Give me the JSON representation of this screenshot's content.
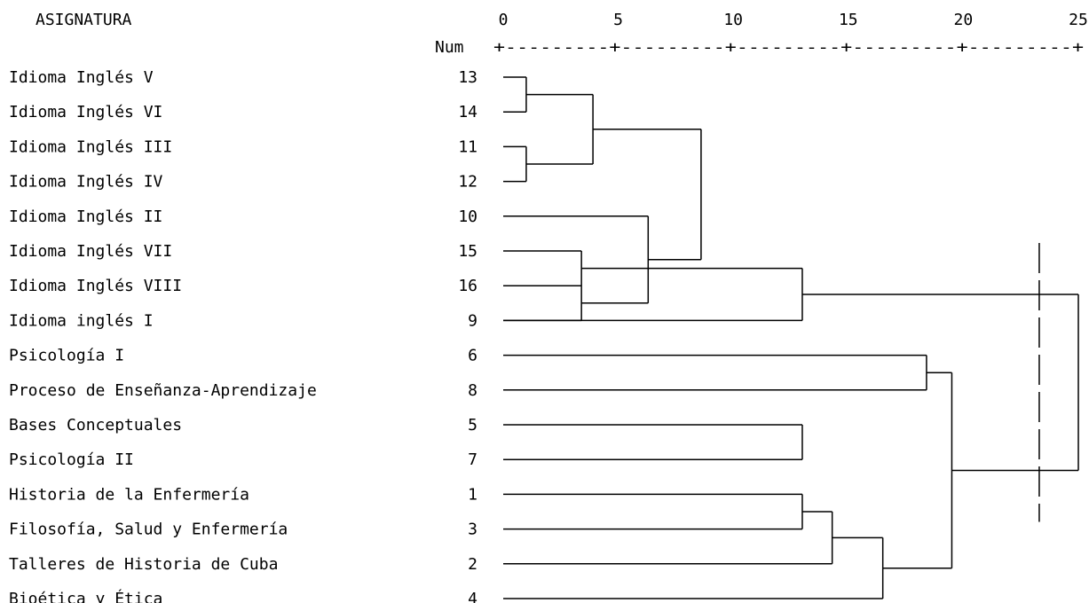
{
  "header": {
    "column_label": "ASIGNATURA",
    "num_label": "Num",
    "scale_ticks": [
      "0",
      "5",
      "10",
      "15",
      "20",
      "25"
    ],
    "scale_rule": "+---------+---------+---------+---------+---------+"
  },
  "items": [
    {
      "label": "Idioma Inglés V",
      "num": "13"
    },
    {
      "label": "Idioma Inglés VI",
      "num": "14"
    },
    {
      "label": "Idioma Inglés III",
      "num": "11"
    },
    {
      "label": "Idioma Inglés IV",
      "num": "12"
    },
    {
      "label": "Idioma Inglés II",
      "num": "10"
    },
    {
      "label": "Idioma Inglés VII",
      "num": "15"
    },
    {
      "label": "Idioma Inglés VIII",
      "num": "16"
    },
    {
      "label": "Idioma inglés I",
      "num": "9"
    },
    {
      "label": "Psicología I",
      "num": "6"
    },
    {
      "label": "Proceso de Enseñanza-Aprendizaje",
      "num": "8"
    },
    {
      "label": "Bases Conceptuales",
      "num": "5"
    },
    {
      "label": "Psicología II",
      "num": "7"
    },
    {
      "label": "Historia de la Enfermería",
      "num": "1"
    },
    {
      "label": "Filosofía, Salud y Enfermería",
      "num": "3"
    },
    {
      "label": "Talleres de Historia de Cuba",
      "num": "2"
    },
    {
      "label": "Bioética y Ética",
      "num": "4"
    }
  ],
  "merges": [
    {
      "a": 0,
      "b": 1,
      "d": 1.0
    },
    {
      "a": 2,
      "b": 3,
      "d": 1.0
    },
    {
      "a": 12,
      "b": 13,
      "d": 13.0
    },
    {
      "a": 6,
      "b": 7,
      "d": 3.4
    },
    {
      "a": 16,
      "b": 17,
      "d": 3.9
    },
    {
      "a": 19,
      "b": 4,
      "d": 6.3
    },
    {
      "a": 5,
      "b": 6,
      "d": 3.4
    },
    {
      "a": 20,
      "b": 21,
      "d": 8.6
    },
    {
      "a": 22,
      "b": 7,
      "d": 13.0
    },
    {
      "a": 18,
      "b": 14,
      "d": 14.3
    },
    {
      "a": 25,
      "b": 15,
      "d": 16.5
    },
    {
      "a": 10,
      "b": 11,
      "d": 13.0
    },
    {
      "a": 8,
      "b": 9,
      "d": 18.4
    },
    {
      "a": 28,
      "b": 26,
      "d": 19.5
    },
    {
      "a": 24,
      "b": 29,
      "d": 25.0
    }
  ]
}
